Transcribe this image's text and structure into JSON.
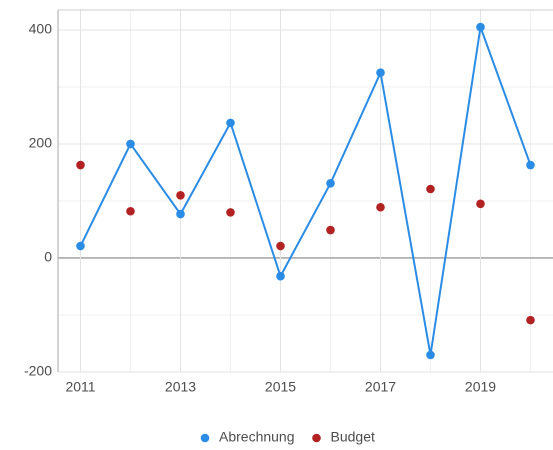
{
  "chart_data": {
    "type": "line",
    "x": [
      2011,
      2012,
      2013,
      2014,
      2015,
      2016,
      2017,
      2018,
      2019,
      2020
    ],
    "series": [
      {
        "name": "Abrechnung",
        "color": "#2b8ce6",
        "show_line": true,
        "values": [
          21,
          200,
          77,
          237,
          -32,
          131,
          325,
          -170,
          405,
          163
        ]
      },
      {
        "name": "Budget",
        "color": "#b22222",
        "show_line": false,
        "values": [
          163,
          82,
          110,
          80,
          21,
          49,
          89,
          121,
          95,
          -109
        ]
      }
    ],
    "xlim": [
      2010.55,
      2020.45
    ],
    "xticks": [
      2011,
      2013,
      2015,
      2017,
      2019
    ],
    "ylim": [
      -200,
      435
    ],
    "yticks": [
      -200,
      0,
      200,
      400
    ],
    "grid": true,
    "legend": "bottom"
  }
}
